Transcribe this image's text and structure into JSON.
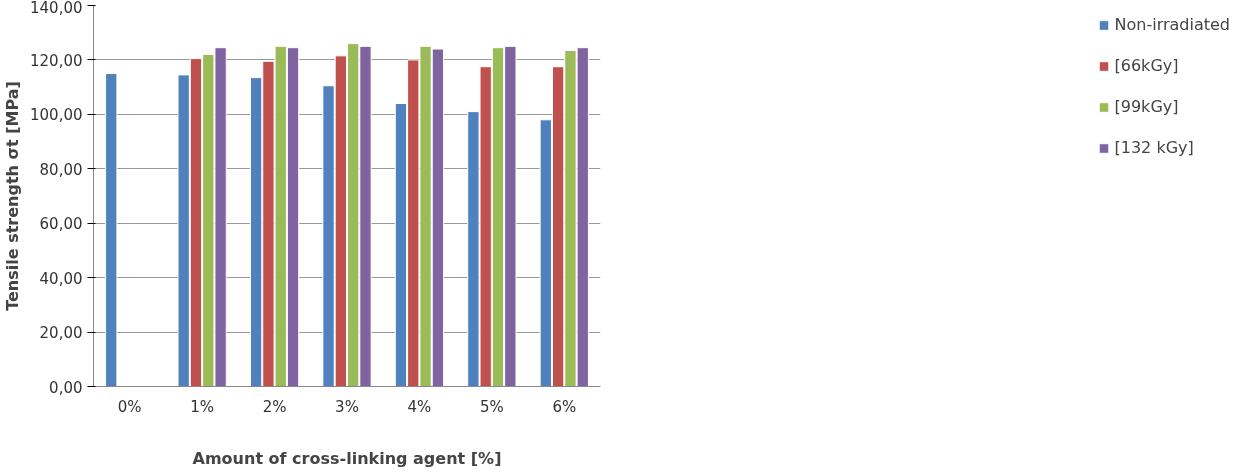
{
  "chart_data": {
    "type": "bar",
    "xlabel": "Amount of cross-linking agent [%]",
    "ylabel": "Tensile strength σt [MPa]",
    "categories": [
      "0%",
      "1%",
      "2%",
      "3%",
      "4%",
      "5%",
      "6%"
    ],
    "series": [
      {
        "name": "Non-irradiated",
        "color": "#4f81bd",
        "values": [
          115,
          114.5,
          113.5,
          110.5,
          104,
          101,
          98
        ]
      },
      {
        "name": "[66kGy]",
        "color": "#c0504d",
        "values": [
          null,
          120.5,
          119.5,
          121.5,
          120,
          117.5,
          117.5
        ]
      },
      {
        "name": "[99kGy]",
        "color": "#9bbb59",
        "values": [
          null,
          122,
          125,
          126,
          125,
          124.5,
          123.5
        ]
      },
      {
        "name": "[132 kGy]",
        "color": "#8064a2",
        "values": [
          null,
          124.5,
          124.5,
          125,
          124,
          125,
          124.5
        ]
      }
    ],
    "ylim": [
      0,
      140
    ],
    "yticks": [
      {
        "value": 0,
        "label": "0,00"
      },
      {
        "value": 20,
        "label": "20,00"
      },
      {
        "value": 40,
        "label": "40,00"
      },
      {
        "value": 60,
        "label": "60,00"
      },
      {
        "value": 80,
        "label": "80,00"
      },
      {
        "value": 100,
        "label": "100,00"
      },
      {
        "value": 120,
        "label": "120,00"
      },
      {
        "value": 140,
        "label": "140,00"
      }
    ],
    "grid": "y",
    "legend": "right"
  }
}
